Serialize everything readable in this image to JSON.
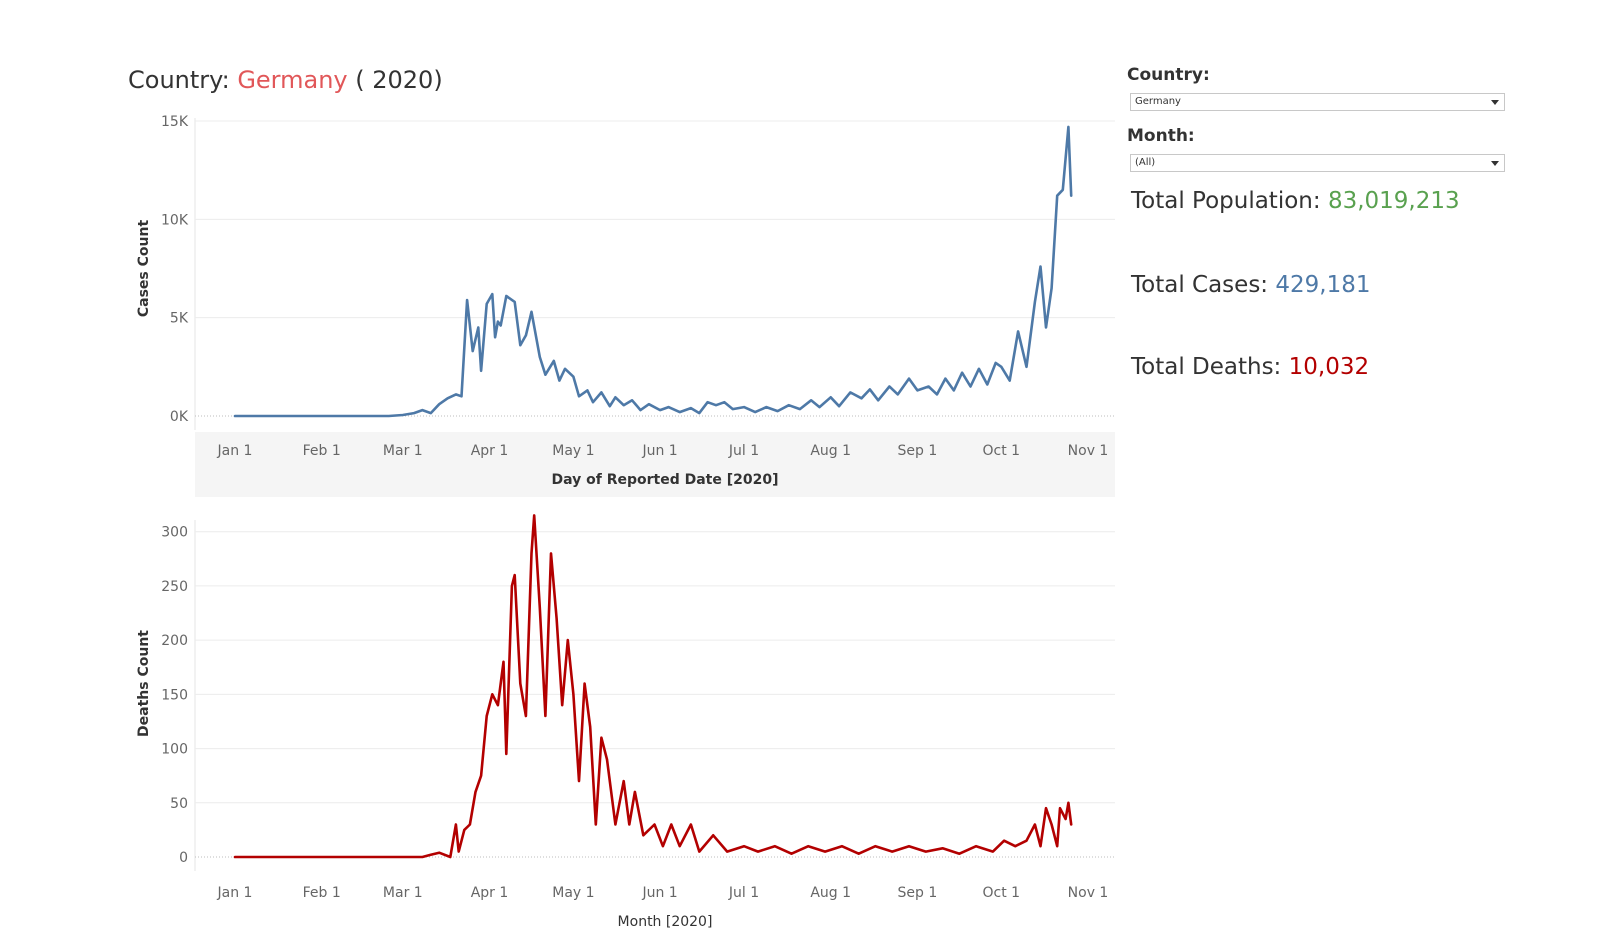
{
  "header": {
    "prefix": "Country: ",
    "country": "Germany",
    "suffix": " ( 2020)"
  },
  "filters": {
    "country_label": "Country:",
    "country_value": "Germany",
    "month_label": "Month:",
    "month_value": "(All)"
  },
  "kpis": {
    "population_label": "Total Population: ",
    "population_value": "83,019,213",
    "cases_label": "Total Cases: ",
    "cases_value": "429,181",
    "deaths_label": "Total Deaths: ",
    "deaths_value": "10,032"
  },
  "colors": {
    "cases_line": "#4e79a7",
    "deaths_line": "#b30000",
    "population": "#59a14f",
    "title_country": "#e15759"
  },
  "chart_data": [
    {
      "type": "line",
      "xlabel": "Day of Reported Date [2020]",
      "ylabel": "Cases Count",
      "x_tick_labels": [
        "Jan 1",
        "Feb 1",
        "Mar 1",
        "Apr 1",
        "May 1",
        "Jun 1",
        "Jul 1",
        "Aug 1",
        "Sep 1",
        "Oct 1",
        "Nov 1"
      ],
      "y_ticks": [
        0,
        5000,
        10000,
        15000
      ],
      "y_tick_labels": [
        "0K",
        "5K",
        "10K",
        "15K"
      ],
      "ylim": [
        0,
        15000
      ],
      "grid": true,
      "series": [
        {
          "color": "#4e79a7",
          "points": [
            [
              "2020-01-01",
              0
            ],
            [
              "2020-02-01",
              0
            ],
            [
              "2020-02-25",
              0
            ],
            [
              "2020-03-01",
              50
            ],
            [
              "2020-03-05",
              150
            ],
            [
              "2020-03-08",
              300
            ],
            [
              "2020-03-11",
              150
            ],
            [
              "2020-03-14",
              600
            ],
            [
              "2020-03-17",
              900
            ],
            [
              "2020-03-20",
              1100
            ],
            [
              "2020-03-22",
              1000
            ],
            [
              "2020-03-24",
              5900
            ],
            [
              "2020-03-26",
              3300
            ],
            [
              "2020-03-28",
              4500
            ],
            [
              "2020-03-29",
              2300
            ],
            [
              "2020-03-31",
              5700
            ],
            [
              "2020-04-02",
              6200
            ],
            [
              "2020-04-03",
              4000
            ],
            [
              "2020-04-04",
              4800
            ],
            [
              "2020-04-05",
              4600
            ],
            [
              "2020-04-07",
              6100
            ],
            [
              "2020-04-10",
              5800
            ],
            [
              "2020-04-12",
              3600
            ],
            [
              "2020-04-14",
              4100
            ],
            [
              "2020-04-16",
              5300
            ],
            [
              "2020-04-19",
              3000
            ],
            [
              "2020-04-21",
              2100
            ],
            [
              "2020-04-24",
              2800
            ],
            [
              "2020-04-26",
              1800
            ],
            [
              "2020-04-28",
              2400
            ],
            [
              "2020-05-01",
              2000
            ],
            [
              "2020-05-03",
              1000
            ],
            [
              "2020-05-06",
              1300
            ],
            [
              "2020-05-08",
              700
            ],
            [
              "2020-05-11",
              1200
            ],
            [
              "2020-05-14",
              500
            ],
            [
              "2020-05-16",
              950
            ],
            [
              "2020-05-19",
              550
            ],
            [
              "2020-05-22",
              800
            ],
            [
              "2020-05-25",
              300
            ],
            [
              "2020-05-28",
              600
            ],
            [
              "2020-06-01",
              300
            ],
            [
              "2020-06-04",
              450
            ],
            [
              "2020-06-08",
              200
            ],
            [
              "2020-06-12",
              400
            ],
            [
              "2020-06-15",
              150
            ],
            [
              "2020-06-18",
              700
            ],
            [
              "2020-06-21",
              550
            ],
            [
              "2020-06-24",
              700
            ],
            [
              "2020-06-27",
              350
            ],
            [
              "2020-07-01",
              450
            ],
            [
              "2020-07-05",
              200
            ],
            [
              "2020-07-09",
              450
            ],
            [
              "2020-07-13",
              250
            ],
            [
              "2020-07-17",
              550
            ],
            [
              "2020-07-21",
              350
            ],
            [
              "2020-07-25",
              800
            ],
            [
              "2020-07-28",
              450
            ],
            [
              "2020-08-01",
              950
            ],
            [
              "2020-08-04",
              500
            ],
            [
              "2020-08-08",
              1200
            ],
            [
              "2020-08-12",
              900
            ],
            [
              "2020-08-15",
              1350
            ],
            [
              "2020-08-18",
              800
            ],
            [
              "2020-08-22",
              1500
            ],
            [
              "2020-08-25",
              1100
            ],
            [
              "2020-08-29",
              1900
            ],
            [
              "2020-09-01",
              1300
            ],
            [
              "2020-09-05",
              1500
            ],
            [
              "2020-09-08",
              1100
            ],
            [
              "2020-09-11",
              1900
            ],
            [
              "2020-09-14",
              1300
            ],
            [
              "2020-09-17",
              2200
            ],
            [
              "2020-09-20",
              1500
            ],
            [
              "2020-09-23",
              2400
            ],
            [
              "2020-09-26",
              1600
            ],
            [
              "2020-09-29",
              2700
            ],
            [
              "2020-10-01",
              2500
            ],
            [
              "2020-10-04",
              1800
            ],
            [
              "2020-10-07",
              4300
            ],
            [
              "2020-10-10",
              2500
            ],
            [
              "2020-10-13",
              5800
            ],
            [
              "2020-10-15",
              7600
            ],
            [
              "2020-10-17",
              4500
            ],
            [
              "2020-10-19",
              6500
            ],
            [
              "2020-10-21",
              11200
            ],
            [
              "2020-10-23",
              11500
            ],
            [
              "2020-10-25",
              14700
            ],
            [
              "2020-10-26",
              11200
            ]
          ]
        }
      ]
    },
    {
      "type": "line",
      "xlabel": "Month [2020]",
      "ylabel": "Deaths Count",
      "x_tick_labels": [
        "Jan 1",
        "Feb 1",
        "Mar 1",
        "Apr 1",
        "May 1",
        "Jun 1",
        "Jul 1",
        "Aug 1",
        "Sep 1",
        "Oct 1",
        "Nov 1"
      ],
      "y_ticks": [
        0,
        50,
        100,
        150,
        200,
        250,
        300
      ],
      "y_tick_labels": [
        "0",
        "50",
        "100",
        "150",
        "200",
        "250",
        "300"
      ],
      "ylim": [
        0,
        320
      ],
      "grid": true,
      "series": [
        {
          "color": "#b30000",
          "points": [
            [
              "2020-01-01",
              0
            ],
            [
              "2020-02-01",
              0
            ],
            [
              "2020-03-08",
              0
            ],
            [
              "2020-03-11",
              2
            ],
            [
              "2020-03-14",
              4
            ],
            [
              "2020-03-18",
              0
            ],
            [
              "2020-03-20",
              30
            ],
            [
              "2020-03-21",
              5
            ],
            [
              "2020-03-23",
              25
            ],
            [
              "2020-03-25",
              30
            ],
            [
              "2020-03-27",
              60
            ],
            [
              "2020-03-29",
              75
            ],
            [
              "2020-03-31",
              130
            ],
            [
              "2020-04-02",
              150
            ],
            [
              "2020-04-04",
              140
            ],
            [
              "2020-04-06",
              180
            ],
            [
              "2020-04-07",
              95
            ],
            [
              "2020-04-09",
              250
            ],
            [
              "2020-04-10",
              260
            ],
            [
              "2020-04-12",
              160
            ],
            [
              "2020-04-14",
              130
            ],
            [
              "2020-04-16",
              280
            ],
            [
              "2020-04-17",
              315
            ],
            [
              "2020-04-19",
              230
            ],
            [
              "2020-04-21",
              130
            ],
            [
              "2020-04-23",
              280
            ],
            [
              "2020-04-25",
              220
            ],
            [
              "2020-04-27",
              140
            ],
            [
              "2020-04-29",
              200
            ],
            [
              "2020-05-01",
              150
            ],
            [
              "2020-05-03",
              70
            ],
            [
              "2020-05-05",
              160
            ],
            [
              "2020-05-07",
              120
            ],
            [
              "2020-05-09",
              30
            ],
            [
              "2020-05-11",
              110
            ],
            [
              "2020-05-13",
              90
            ],
            [
              "2020-05-16",
              30
            ],
            [
              "2020-05-19",
              70
            ],
            [
              "2020-05-21",
              30
            ],
            [
              "2020-05-23",
              60
            ],
            [
              "2020-05-26",
              20
            ],
            [
              "2020-05-30",
              30
            ],
            [
              "2020-06-02",
              10
            ],
            [
              "2020-06-05",
              30
            ],
            [
              "2020-06-08",
              10
            ],
            [
              "2020-06-12",
              30
            ],
            [
              "2020-06-15",
              5
            ],
            [
              "2020-06-20",
              20
            ],
            [
              "2020-06-25",
              5
            ],
            [
              "2020-07-01",
              10
            ],
            [
              "2020-07-06",
              5
            ],
            [
              "2020-07-12",
              10
            ],
            [
              "2020-07-18",
              3
            ],
            [
              "2020-07-24",
              10
            ],
            [
              "2020-07-30",
              5
            ],
            [
              "2020-08-05",
              10
            ],
            [
              "2020-08-11",
              3
            ],
            [
              "2020-08-17",
              10
            ],
            [
              "2020-08-23",
              5
            ],
            [
              "2020-08-29",
              10
            ],
            [
              "2020-09-04",
              5
            ],
            [
              "2020-09-10",
              8
            ],
            [
              "2020-09-16",
              3
            ],
            [
              "2020-09-22",
              10
            ],
            [
              "2020-09-28",
              5
            ],
            [
              "2020-10-02",
              15
            ],
            [
              "2020-10-06",
              10
            ],
            [
              "2020-10-10",
              15
            ],
            [
              "2020-10-13",
              30
            ],
            [
              "2020-10-15",
              10
            ],
            [
              "2020-10-17",
              45
            ],
            [
              "2020-10-19",
              30
            ],
            [
              "2020-10-21",
              10
            ],
            [
              "2020-10-22",
              45
            ],
            [
              "2020-10-24",
              35
            ],
            [
              "2020-10-25",
              50
            ],
            [
              "2020-10-26",
              30
            ]
          ]
        }
      ]
    }
  ]
}
